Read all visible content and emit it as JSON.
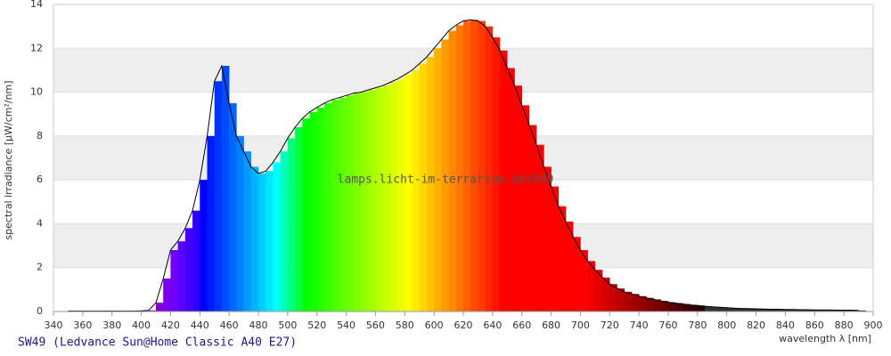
{
  "chart_data": {
    "type": "area",
    "x_label": "wavelength λ [nm]",
    "y_label": "spectral irradiance [µW/cm²/nm]",
    "watermark": "lamps.licht-im-terrarium.de>649",
    "caption": "SW49 (Ledvance Sun@Home Classic A40 E27)",
    "x": [
      350,
      355,
      360,
      365,
      370,
      375,
      380,
      385,
      390,
      395,
      400,
      405,
      410,
      415,
      420,
      425,
      430,
      435,
      440,
      445,
      450,
      455,
      460,
      465,
      470,
      475,
      480,
      485,
      490,
      495,
      500,
      505,
      510,
      515,
      520,
      525,
      530,
      535,
      540,
      545,
      550,
      555,
      560,
      565,
      570,
      575,
      580,
      585,
      590,
      595,
      600,
      605,
      610,
      615,
      620,
      625,
      630,
      635,
      640,
      645,
      650,
      655,
      660,
      665,
      670,
      675,
      680,
      685,
      690,
      695,
      700,
      705,
      710,
      715,
      720,
      725,
      730,
      735,
      740,
      745,
      750,
      755,
      760,
      765,
      770,
      775,
      780,
      785,
      790,
      795,
      800,
      805,
      810,
      815,
      820,
      825,
      830,
      835,
      840,
      845,
      850,
      855,
      860,
      865,
      870,
      875,
      880,
      885,
      890
    ],
    "values": [
      0.02,
      0.02,
      0.02,
      0.02,
      0.02,
      0.02,
      0.02,
      0.02,
      0.02,
      0.02,
      0.03,
      0.05,
      0.4,
      1.5,
      2.8,
      3.2,
      3.8,
      4.6,
      6.0,
      8.0,
      10.5,
      11.2,
      9.5,
      8.0,
      7.3,
      6.6,
      6.3,
      6.4,
      6.8,
      7.3,
      7.9,
      8.4,
      8.8,
      9.1,
      9.3,
      9.5,
      9.65,
      9.75,
      9.85,
      9.95,
      10.0,
      10.1,
      10.2,
      10.3,
      10.45,
      10.6,
      10.8,
      11.0,
      11.3,
      11.6,
      12.0,
      12.4,
      12.8,
      13.05,
      13.25,
      13.3,
      13.25,
      13.0,
      12.5,
      11.9,
      11.1,
      10.3,
      9.4,
      8.5,
      7.6,
      6.6,
      5.7,
      4.8,
      4.1,
      3.4,
      2.8,
      2.3,
      1.9,
      1.55,
      1.25,
      1.05,
      0.9,
      0.8,
      0.7,
      0.62,
      0.55,
      0.48,
      0.42,
      0.38,
      0.34,
      0.3,
      0.27,
      0.24,
      0.21,
      0.19,
      0.17,
      0.15,
      0.14,
      0.13,
      0.12,
      0.11,
      0.1,
      0.1,
      0.09,
      0.09,
      0.08,
      0.08,
      0.07,
      0.07,
      0.07,
      0.06,
      0.06,
      0.06,
      0.05
    ],
    "xlim": [
      340,
      900
    ],
    "ylim": [
      0,
      14
    ],
    "xticks": [
      340,
      360,
      380,
      400,
      420,
      440,
      460,
      480,
      500,
      520,
      540,
      560,
      580,
      600,
      620,
      640,
      660,
      680,
      700,
      720,
      740,
      760,
      780,
      800,
      820,
      840,
      860,
      880,
      900
    ],
    "yticks": [
      0,
      2,
      4,
      6,
      8,
      10,
      12,
      14
    ],
    "grid": true,
    "line_color": "#000000"
  }
}
